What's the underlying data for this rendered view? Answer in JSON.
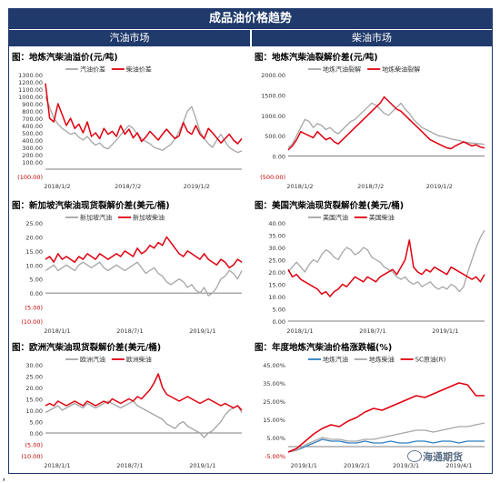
{
  "header": {
    "title": "成品油价格趋势",
    "left_section": "汽油市场",
    "right_section": "柴油市场"
  },
  "footer": {
    "mark": "，",
    "watermark": "海通期货"
  },
  "colors": {
    "header_bg": "#1f3a6b",
    "gray": "#a6a6a6",
    "red": "#e0000f",
    "blue": "#2f7fc1",
    "light_gray": "#bfbfbf"
  },
  "chart_data": [
    {
      "id": "c1",
      "type": "line",
      "title": "图：地炼汽柴油溢价(元/吨)",
      "ylim": [
        -100,
        1300
      ],
      "yticks": [
        "(100.00)",
        "100.00",
        "200.00",
        "300.00",
        "400.00",
        "500.00",
        "600.00",
        "700.00",
        "800.00",
        "900.00",
        "1000.00",
        "1100.00",
        "1200.00",
        "1300.00"
      ],
      "ytick_values": [
        -100,
        100,
        200,
        300,
        400,
        500,
        600,
        700,
        800,
        900,
        1000,
        1100,
        1200,
        1300
      ],
      "xticks": [
        "2018/1/2",
        "2018/7/2",
        "2019/1/2"
      ],
      "xtick_pos": [
        0.06,
        0.42,
        0.77
      ],
      "legend": [
        "汽油价差",
        "柴油价差"
      ],
      "series": [
        {
          "name": "汽油价差",
          "color": "#a6a6a6",
          "values": [
            1000,
            850,
            700,
            620,
            560,
            520,
            480,
            500,
            440,
            400,
            450,
            380,
            330,
            360,
            300,
            280,
            340,
            400,
            470,
            540,
            600,
            560,
            480,
            420,
            380,
            350,
            300,
            280,
            260,
            300,
            340,
            420,
            520,
            650,
            800,
            860,
            700,
            520,
            420,
            350,
            300,
            400,
            480,
            380,
            300,
            260,
            230,
            250
          ]
        },
        {
          "name": "柴油价差",
          "color": "#e0000f",
          "values": [
            1180,
            700,
            650,
            900,
            750,
            600,
            700,
            560,
            620,
            500,
            650,
            450,
            500,
            420,
            560,
            480,
            520,
            450,
            600,
            480,
            550,
            430,
            500,
            380,
            440,
            520,
            460,
            400,
            480,
            550,
            480,
            420,
            460,
            640,
            520,
            480,
            600,
            480,
            420,
            560,
            500,
            430,
            360,
            420,
            480,
            400,
            350,
            420
          ]
        }
      ]
    },
    {
      "id": "c2",
      "type": "line",
      "title": "图：地炼汽柴油裂解价差(元/吨)",
      "ylim": [
        -500,
        2000
      ],
      "yticks": [
        "(500.00)",
        "0.00",
        "500.00",
        "1000.00",
        "1500.00",
        "2000.00"
      ],
      "ytick_values": [
        -500,
        0,
        500,
        1000,
        1500,
        2000
      ],
      "xticks": [
        "2018/1/2",
        "2018/7/2",
        "2019/1/2"
      ],
      "xtick_pos": [
        0.06,
        0.42,
        0.77
      ],
      "legend": [
        "地炼汽油裂解",
        "地炼柴油裂解"
      ],
      "series": [
        {
          "name": "地炼汽油裂解",
          "color": "#a6a6a6",
          "values": [
            200,
            300,
            500,
            700,
            900,
            850,
            700,
            800,
            750,
            650,
            700,
            600,
            550,
            650,
            750,
            850,
            900,
            1000,
            1100,
            1200,
            1300,
            1250,
            1150,
            1050,
            1000,
            1100,
            1200,
            1300,
            1150,
            1050,
            900,
            800,
            700,
            650,
            600,
            550,
            500,
            480,
            450,
            420,
            400,
            380,
            350,
            330,
            320,
            310,
            300,
            290
          ]
        },
        {
          "name": "地炼柴油裂解",
          "color": "#e0000f",
          "values": [
            150,
            250,
            400,
            600,
            550,
            500,
            450,
            600,
            500,
            400,
            450,
            350,
            300,
            400,
            500,
            600,
            700,
            800,
            900,
            1000,
            1100,
            1200,
            1300,
            1450,
            1350,
            1250,
            1150,
            1100,
            1000,
            900,
            800,
            700,
            600,
            500,
            400,
            350,
            300,
            250,
            200,
            180,
            250,
            300,
            350,
            300,
            250,
            280,
            220,
            200
          ]
        }
      ]
    },
    {
      "id": "c3",
      "type": "line",
      "title": "图：新加坡汽柴油现货裂解价差(美元/桶)",
      "ylim": [
        -10,
        25
      ],
      "yticks": [
        "(10.00)",
        "(5.00)",
        "0.00",
        "5.00",
        "10.00",
        "15.00",
        "20.00",
        "25.00"
      ],
      "ytick_values": [
        -10,
        -5,
        0,
        5,
        10,
        15,
        20,
        25
      ],
      "xticks": [
        "2018/1/1",
        "2018/7/1",
        "2019/1/1"
      ],
      "xtick_pos": [
        0.06,
        0.43,
        0.8
      ],
      "legend": [
        "新加坡汽油",
        "新加坡柴油"
      ],
      "series": [
        {
          "name": "新加坡汽油",
          "color": "#a6a6a6",
          "values": [
            8,
            9,
            10,
            8,
            9,
            10,
            9,
            8,
            10,
            11,
            10,
            9,
            10,
            11,
            9,
            8,
            9,
            10,
            9,
            8,
            9,
            10,
            11,
            9,
            7,
            8,
            9,
            7,
            6,
            4,
            3,
            4,
            5,
            4,
            2,
            3,
            1,
            0,
            2,
            -1,
            0,
            2,
            5,
            6,
            8,
            7,
            5,
            8
          ]
        },
        {
          "name": "新加坡柴油",
          "color": "#e0000f",
          "values": [
            12,
            13,
            11,
            14,
            12,
            13,
            12,
            11,
            13,
            12,
            14,
            13,
            12,
            14,
            13,
            12,
            13,
            14,
            13,
            15,
            14,
            13,
            16,
            14,
            15,
            17,
            16,
            18,
            17,
            20,
            18,
            16,
            14,
            13,
            15,
            14,
            13,
            12,
            14,
            12,
            11,
            10,
            12,
            11,
            9,
            10,
            12,
            11
          ]
        }
      ]
    },
    {
      "id": "c4",
      "type": "line",
      "title": "图：美国汽柴油现货裂解价差(美元/桶)",
      "ylim": [
        0,
        40
      ],
      "yticks": [
        "0.00",
        "5.00",
        "10.00",
        "15.00",
        "20.00",
        "25.00",
        "30.00",
        "35.00",
        "40.00"
      ],
      "ytick_values": [
        0,
        5,
        10,
        15,
        20,
        25,
        30,
        35,
        40
      ],
      "xticks": [
        "2018/1/1",
        "2018/7/1",
        "2019/1/1"
      ],
      "xtick_pos": [
        0.06,
        0.43,
        0.8
      ],
      "legend": [
        "美国汽油",
        "美国柴油"
      ],
      "series": [
        {
          "name": "美国汽油",
          "color": "#a6a6a6",
          "values": [
            20,
            22,
            24,
            22,
            20,
            23,
            25,
            24,
            27,
            29,
            28,
            26,
            25,
            28,
            30,
            29,
            27,
            28,
            30,
            29,
            26,
            25,
            24,
            22,
            21,
            20,
            18,
            17,
            18,
            16,
            15,
            16,
            14,
            15,
            16,
            14,
            13,
            14,
            13,
            15,
            14,
            12,
            14,
            20,
            25,
            30,
            34,
            37
          ]
        },
        {
          "name": "美国柴油",
          "color": "#e0000f",
          "values": [
            21,
            18,
            19,
            17,
            16,
            15,
            14,
            13,
            11,
            12,
            10,
            12,
            13,
            15,
            14,
            16,
            18,
            17,
            16,
            18,
            17,
            16,
            18,
            19,
            20,
            21,
            19,
            22,
            25,
            33,
            22,
            20,
            19,
            21,
            20,
            22,
            21,
            20,
            19,
            22,
            21,
            20,
            19,
            18,
            17,
            18,
            16,
            19
          ]
        }
      ]
    },
    {
      "id": "c5",
      "type": "line",
      "title": "图：欧洲汽柴油现货裂解价差(美元/桶)",
      "ylim": [
        -10,
        30
      ],
      "yticks": [
        "(10.00)",
        "(5.00)",
        "0.00",
        "5.00",
        "10.00",
        "15.00",
        "20.00",
        "25.00",
        "30.00"
      ],
      "ytick_values": [
        -10,
        -5,
        0,
        5,
        10,
        15,
        20,
        25,
        30
      ],
      "xticks": [
        "2018/1/1",
        "2018/7/1",
        "2019/1/1"
      ],
      "xtick_pos": [
        0.06,
        0.43,
        0.8
      ],
      "legend": [
        "欧洲汽油",
        "欧洲柴油"
      ],
      "series": [
        {
          "name": "欧洲汽油",
          "color": "#a6a6a6",
          "values": [
            9,
            10,
            11,
            12,
            10,
            11,
            12,
            13,
            12,
            11,
            13,
            12,
            11,
            12,
            13,
            14,
            13,
            12,
            11,
            12,
            13,
            14,
            12,
            11,
            10,
            9,
            8,
            7,
            6,
            4,
            3,
            2,
            4,
            5,
            3,
            2,
            1,
            0,
            -2,
            0,
            1,
            3,
            5,
            8,
            10,
            11,
            12,
            9
          ]
        },
        {
          "name": "欧洲柴油",
          "color": "#e0000f",
          "values": [
            12,
            13,
            12,
            14,
            13,
            12,
            13,
            14,
            13,
            12,
            14,
            13,
            12,
            13,
            14,
            13,
            15,
            14,
            13,
            14,
            15,
            14,
            16,
            15,
            17,
            19,
            22,
            26,
            20,
            17,
            16,
            15,
            14,
            15,
            16,
            15,
            14,
            13,
            14,
            15,
            14,
            13,
            12,
            13,
            12,
            11,
            12,
            10
          ]
        }
      ]
    },
    {
      "id": "c6",
      "type": "line",
      "title": "图：年度地炼汽柴油价格涨跌幅(%)",
      "ylim": [
        -5,
        45
      ],
      "yticks": [
        "-5.00%",
        "5.00%",
        "15.00%",
        "25.00%",
        "35.00%",
        "45.00%"
      ],
      "ytick_values": [
        -5,
        5,
        15,
        25,
        35,
        45
      ],
      "xticks": [
        "2019/1/1",
        "2019/2/1",
        "2019/3/1",
        "2019/4/1"
      ],
      "xtick_pos": [
        0.08,
        0.35,
        0.6,
        0.87
      ],
      "legend": [
        "地炼汽油",
        "地炼柴油",
        "SC原油(R)"
      ],
      "series": [
        {
          "name": "地炼汽油",
          "color": "#2f7fc1",
          "values": [
            -3,
            -2,
            0,
            2,
            4,
            3,
            3,
            2,
            2,
            3,
            2,
            2,
            3,
            2,
            2,
            3,
            3,
            2,
            3,
            3,
            2,
            3,
            3,
            3
          ]
        },
        {
          "name": "地炼柴油",
          "color": "#a6a6a6",
          "values": [
            -3,
            -2,
            1,
            3,
            5,
            4,
            4,
            3,
            3,
            4,
            4,
            5,
            6,
            7,
            8,
            9,
            9,
            8,
            9,
            10,
            11,
            11,
            12,
            13
          ]
        },
        {
          "name": "SC原油(R)",
          "color": "#e0000f",
          "values": [
            -3,
            -1,
            3,
            7,
            10,
            12,
            11,
            14,
            16,
            19,
            21,
            20,
            22,
            24,
            26,
            28,
            27,
            29,
            31,
            33,
            35,
            34,
            28,
            28
          ]
        }
      ]
    }
  ]
}
